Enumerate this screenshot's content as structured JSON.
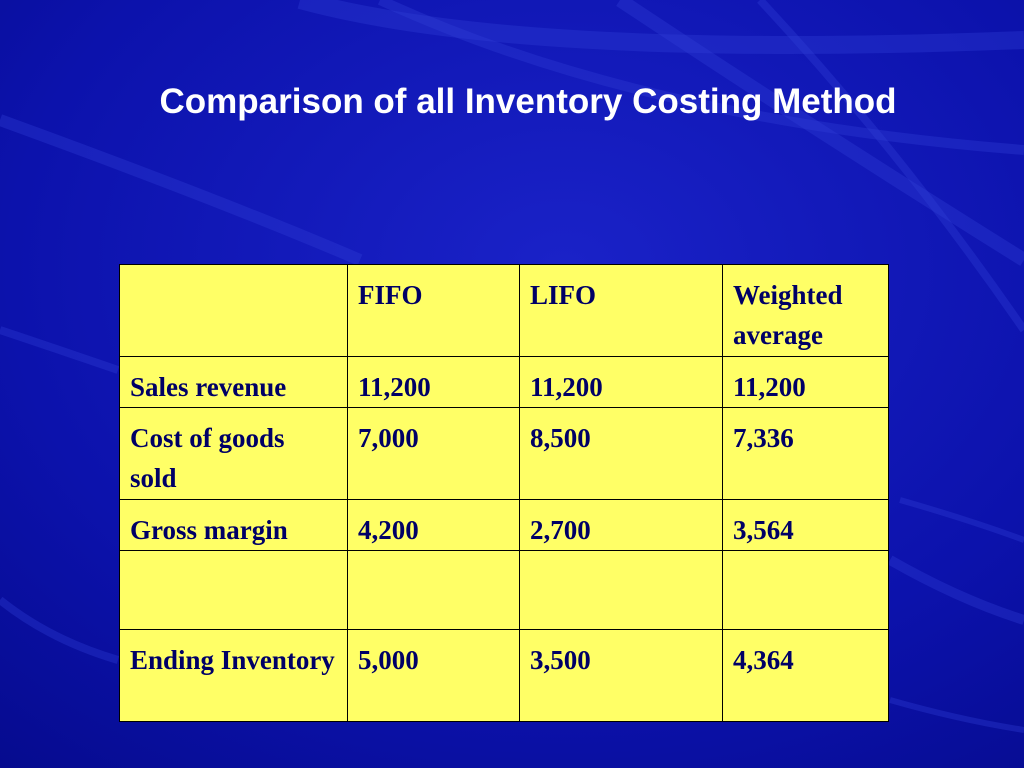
{
  "slide": {
    "title": "Comparison of all Inventory Costing Method"
  },
  "table": {
    "headers": [
      "",
      "FIFO",
      "LIFO",
      "Weighted average"
    ],
    "rows": [
      [
        "Sales revenue",
        "11,200",
        "11,200",
        "11,200"
      ],
      [
        "Cost of goods sold",
        "7,000",
        "8,500",
        "7,336"
      ],
      [
        "Gross margin",
        "4,200",
        "2,700",
        "3,564"
      ],
      [
        "",
        "",
        "",
        ""
      ],
      [
        "Ending Inventory",
        "5,000",
        "3,500",
        "4,364"
      ]
    ]
  },
  "colors": {
    "background": "#0a10a8",
    "table_fill": "#ffff66",
    "table_text": "#000066",
    "title_text": "#ffffff"
  }
}
